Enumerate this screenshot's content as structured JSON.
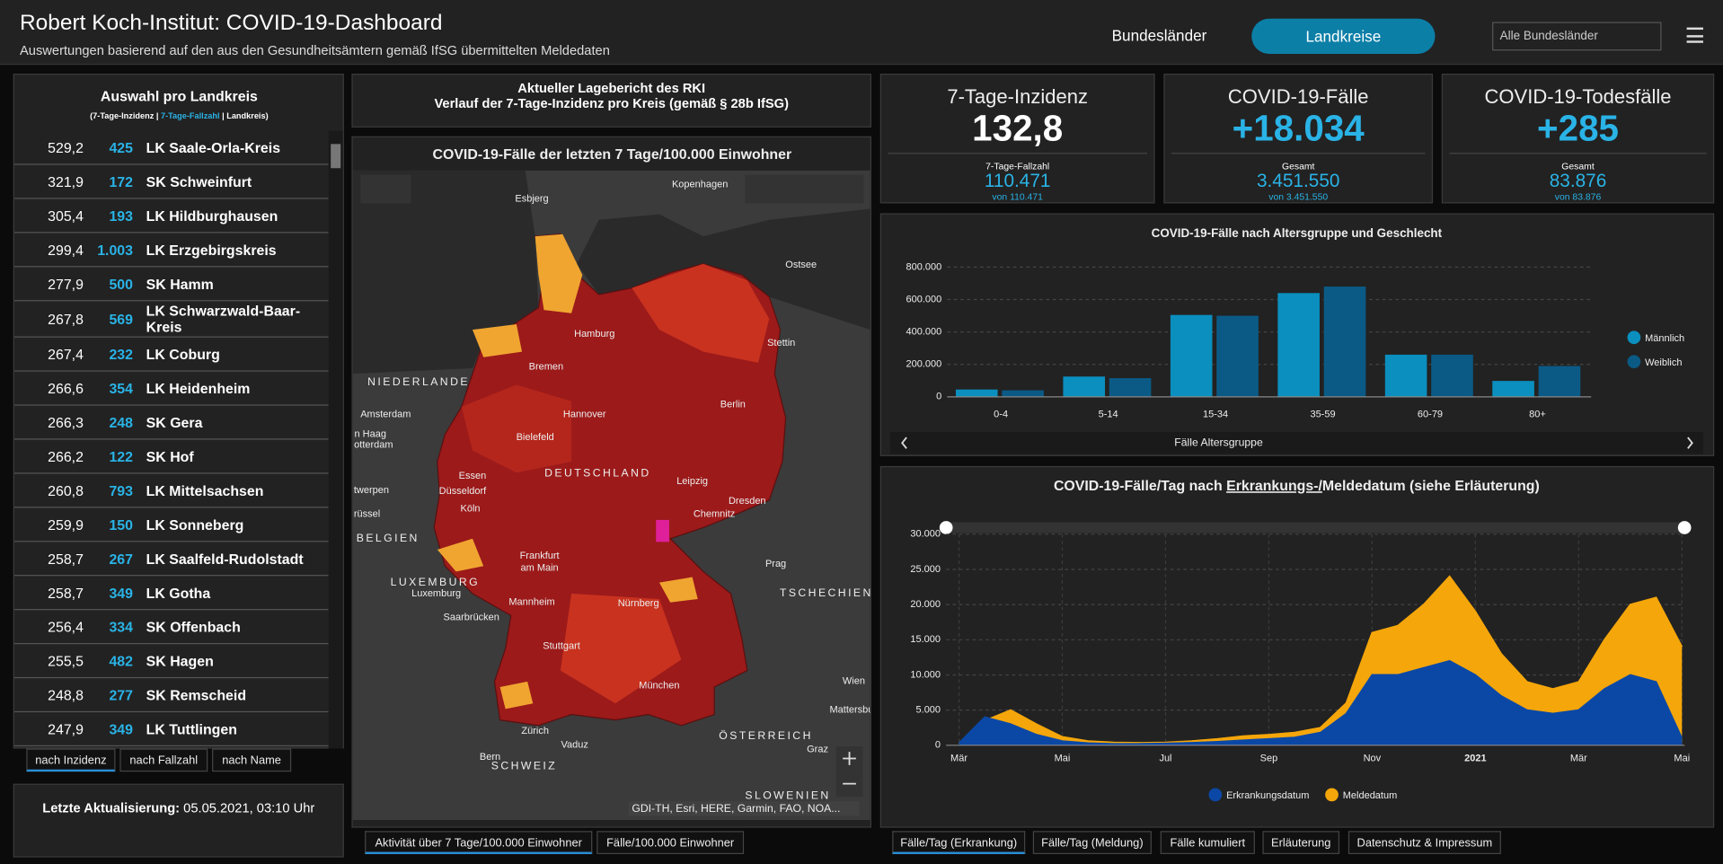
{
  "header": {
    "title": "Robert Koch-Institut: COVID-19-Dashboard",
    "subtitle": "Auswertungen basierend auf den aus den Gesundheitsämtern gemäß IfSG übermittelten Meldedaten",
    "nav": [
      "Bundesländer",
      "Landkreise"
    ],
    "dropdown": "Alle Bundesländer"
  },
  "sidebar": {
    "title": "Auswahl pro Landkreis",
    "legend": [
      "(7-Tage-Inzidenz | ",
      "7-Tage-Fallzahl",
      " | Landkreis)"
    ],
    "rows": [
      [
        "529,2",
        "425",
        "LK Saale-Orla-Kreis"
      ],
      [
        "321,9",
        "172",
        "SK Schweinfurt"
      ],
      [
        "305,4",
        "193",
        "LK Hildburghausen"
      ],
      [
        "299,4",
        "1.003",
        "LK Erzgebirgskreis"
      ],
      [
        "277,9",
        "500",
        "SK Hamm"
      ],
      [
        "267,8",
        "569",
        "LK Schwarzwald-Baar-Kreis"
      ],
      [
        "267,4",
        "232",
        "LK Coburg"
      ],
      [
        "266,6",
        "354",
        "LK Heidenheim"
      ],
      [
        "266,3",
        "248",
        "SK Gera"
      ],
      [
        "266,2",
        "122",
        "SK Hof"
      ],
      [
        "260,8",
        "793",
        "LK Mittelsachsen"
      ],
      [
        "259,9",
        "150",
        "LK Sonneberg"
      ],
      [
        "258,7",
        "267",
        "LK Saalfeld-Rudolstadt"
      ],
      [
        "258,7",
        "349",
        "LK Gotha"
      ],
      [
        "256,4",
        "334",
        "SK Offenbach"
      ],
      [
        "255,5",
        "482",
        "SK Hagen"
      ],
      [
        "248,8",
        "277",
        "SK Remscheid"
      ],
      [
        "247,9",
        "349",
        "LK Tuttlingen"
      ]
    ],
    "tabs": [
      "nach Inzidenz",
      "nach Fallzahl",
      "nach Name"
    ],
    "update_label": "Letzte Aktualisierung:",
    "update_value": "05.05.2021, 03:10 Uhr"
  },
  "report": {
    "lines": [
      "Aktueller Lagebericht des RKI",
      "Verlauf der 7-Tage-Inzidenz pro Kreis (gemäß § 28b IfSG)"
    ]
  },
  "map": {
    "title": "COVID-19-Fälle der letzten 7 Tage/100.000 Einwohner",
    "labels": [
      "Esbjerg",
      "Kopenhagen",
      "Ostsee",
      "Hamburg",
      "Stettin",
      "Bremen",
      "NIEDERLANDE",
      "Amsterdam",
      "Hannover",
      "Berlin",
      "n Haag",
      "otterdam",
      "Bielefeld",
      "Essen",
      "DEUTSCHLAND",
      "Leipzig",
      "Düsseldorf",
      "Dresden",
      "twerpen",
      "Köln",
      "Chemnitz",
      "rüssel",
      "BELGIEN",
      "Frankfurt",
      "am Main",
      "Prag",
      "LUXEMBURG",
      "Luxemburg",
      "TSCHECHIEN",
      "Mannheim",
      "Nürnberg",
      "Saarbrücken",
      "Stuttgart",
      "München",
      "Wien",
      "Mattersbu",
      "Zürich",
      "ÖSTERREICH",
      "Vaduz",
      "Graz",
      "Bern",
      "SCHWEIZ",
      "SLOWENIEN"
    ],
    "attribution": "GDI-TH, Esri, HERE, Garmin, FAO, NOA...",
    "tabs": [
      "Aktivität über 7 Tage/100.000 Einwohner",
      "Fälle/100.000 Einwohner"
    ]
  },
  "kpis": [
    {
      "title": "7-Tage-Inzidenz",
      "value": "132,8",
      "sub_label": "7-Tage-Fallzahl",
      "sub_value": "110.471",
      "sub_note": "von 110.471"
    },
    {
      "title": "COVID-19-Fälle",
      "value": "+18.034",
      "sub_label": "Gesamt",
      "sub_value": "3.451.550",
      "sub_note": "von 3.451.550"
    },
    {
      "title": "COVID-19-Todesfälle",
      "value": "+285",
      "sub_label": "Gesamt",
      "sub_value": "83.876",
      "sub_note": "von 83.876"
    }
  ],
  "chart_data": [
    {
      "type": "bar",
      "title": "COVID-19-Fälle nach Altersgruppe und Geschlecht",
      "x_label": "Fälle Altersgruppe",
      "categories": [
        "0-4",
        "5-14",
        "15-34",
        "35-59",
        "60-79",
        "80+"
      ],
      "series": [
        {
          "name": "Männlich",
          "color": "#0a8fbf",
          "values": [
            45000,
            125000,
            505000,
            640000,
            260000,
            98000
          ]
        },
        {
          "name": "Weiblich",
          "color": "#0b5a86",
          "values": [
            40000,
            115000,
            500000,
            680000,
            260000,
            190000
          ]
        }
      ],
      "ylim": [
        0,
        800000
      ],
      "yticks": [
        0,
        {
          "value": 200000,
          "label": "200.000"
        },
        {
          "value": 400000,
          "label": "400.000"
        },
        {
          "value": 600000,
          "label": "600.000"
        },
        {
          "value": 800000,
          "label": "800.000"
        }
      ],
      "grid": true,
      "legend": "right"
    },
    {
      "type": "area",
      "title_parts": [
        "COVID-19-Fälle/Tag nach ",
        "Erkrankungs-/",
        "Meldedatum (siehe Erläuterung)"
      ],
      "x": [
        0,
        0.5,
        1,
        1.5,
        2,
        2.5,
        3,
        3.5,
        4,
        4.5,
        5,
        5.5,
        6,
        6.5,
        7,
        7.5,
        8,
        8.5,
        9,
        9.5,
        10,
        10.5,
        11,
        11.5,
        12,
        12.5,
        13,
        13.5,
        14
      ],
      "series": [
        {
          "name": "Erkrankungsdatum",
          "color": "#0b48a6",
          "values": [
            300,
            4000,
            3000,
            1500,
            600,
            300,
            200,
            200,
            250,
            350,
            500,
            700,
            900,
            1100,
            1800,
            4500,
            10000,
            10000,
            11000,
            12000,
            10000,
            7000,
            5000,
            4500,
            5000,
            8000,
            10000,
            9000,
            1000
          ]
        },
        {
          "name": "Meldedatum",
          "color": "#f5a60a",
          "values": [
            200,
            3500,
            5000,
            3000,
            1200,
            600,
            400,
            350,
            400,
            600,
            900,
            1300,
            1500,
            1800,
            2500,
            6000,
            16000,
            17000,
            20000,
            24000,
            19000,
            13000,
            9000,
            8000,
            9000,
            15000,
            20000,
            21000,
            14000
          ]
        }
      ],
      "xlim": [
        -0.25,
        14.05
      ],
      "xticks": [
        {
          "value": 0,
          "label": "Mär"
        },
        {
          "value": 2,
          "label": "Mai"
        },
        {
          "value": 4,
          "label": "Jul"
        },
        {
          "value": 6,
          "label": "Sep"
        },
        {
          "value": 8,
          "label": "Nov"
        },
        {
          "value": 10,
          "label": "2021"
        },
        {
          "value": 12,
          "label": "Mär"
        },
        {
          "value": 14,
          "label": "Mai"
        }
      ],
      "ylim": [
        0,
        30000
      ],
      "yticks": [
        0,
        {
          "value": 5000,
          "label": "5.000"
        },
        {
          "value": 10000,
          "label": "10.000"
        },
        {
          "value": 15000,
          "label": "15.000"
        },
        {
          "value": 20000,
          "label": "20.000"
        },
        {
          "value": 25000,
          "label": "25.000"
        },
        {
          "value": 30000,
          "label": "30.000"
        }
      ],
      "grid": true,
      "legend": "bottom"
    }
  ],
  "chart_tabs": [
    "Fälle/Tag (Erkrankung)",
    "Fälle/Tag (Meldung)",
    "Fälle kumuliert",
    "Erläuterung",
    "Datenschutz & Impressum"
  ]
}
